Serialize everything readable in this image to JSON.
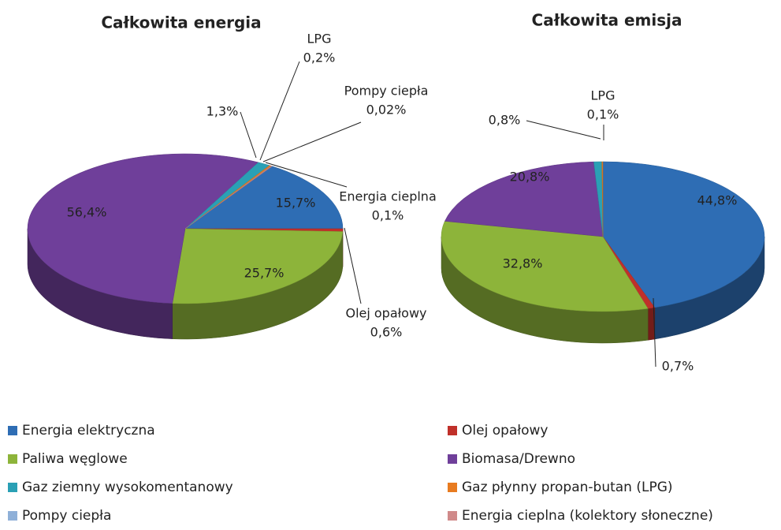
{
  "chart_data": [
    {
      "type": "pie",
      "title": "Całkowita energia",
      "categories": [
        null,
        "Olej opałowy",
        null,
        null,
        null,
        "LPG",
        "Pompy ciepła",
        "Energia cieplna"
      ],
      "values": [
        15.7,
        0.6,
        25.7,
        56.4,
        1.3,
        0.2,
        0.02,
        0.1
      ],
      "value_labels": [
        "15,7%",
        "0,6%",
        "25,7%",
        "56,4%",
        "1,3%",
        "0,2%",
        "0,02%",
        "0,1%"
      ]
    },
    {
      "type": "pie",
      "title": "Całkowita emisja",
      "categories": [
        null,
        null,
        null,
        null,
        null,
        "LPG"
      ],
      "values": [
        44.8,
        0.7,
        32.8,
        20.8,
        0.8,
        0.1
      ],
      "value_labels": [
        "44,8%",
        "0,7%",
        "32,8%",
        "20,8%",
        "0,8%",
        "0,1%"
      ]
    }
  ],
  "legend": [
    {
      "name": "Energia elektryczna",
      "color": "#2e6db4"
    },
    {
      "name": "Olej opałowy",
      "color": "#c0302a"
    },
    {
      "name": "Paliwa węglowe",
      "color": "#8db43a"
    },
    {
      "name": "Biomasa/Drewno",
      "color": "#6f3f9a"
    },
    {
      "name": "Gaz ziemny wysokomentanowy",
      "color": "#2aa0b5"
    },
    {
      "name": "Gaz płynny propan-butan  (LPG)",
      "color": "#e87b20"
    },
    {
      "name": "Pompy ciepła",
      "color": "#8fb0d8"
    },
    {
      "name": "Energia cieplna (kolektory słoneczne)",
      "color": "#d08a8a"
    }
  ]
}
